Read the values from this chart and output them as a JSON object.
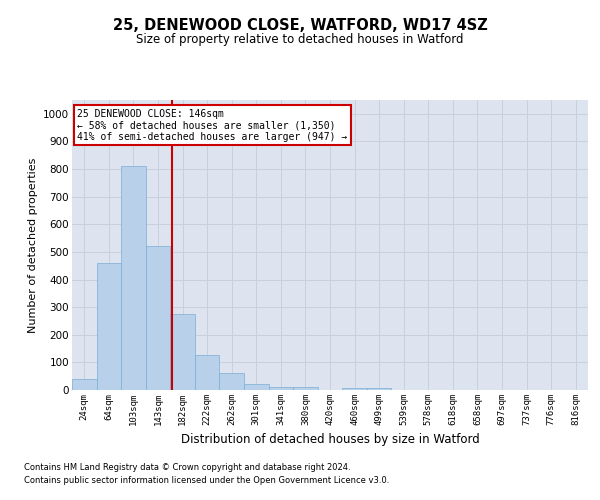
{
  "title": "25, DENEWOOD CLOSE, WATFORD, WD17 4SZ",
  "subtitle": "Size of property relative to detached houses in Watford",
  "xlabel": "Distribution of detached houses by size in Watford",
  "ylabel": "Number of detached properties",
  "footnote1": "Contains HM Land Registry data © Crown copyright and database right 2024.",
  "footnote2": "Contains public sector information licensed under the Open Government Licence v3.0.",
  "bin_labels": [
    "24sqm",
    "64sqm",
    "103sqm",
    "143sqm",
    "182sqm",
    "222sqm",
    "262sqm",
    "301sqm",
    "341sqm",
    "380sqm",
    "420sqm",
    "460sqm",
    "499sqm",
    "539sqm",
    "578sqm",
    "618sqm",
    "658sqm",
    "697sqm",
    "737sqm",
    "776sqm",
    "816sqm"
  ],
  "bar_values": [
    40,
    460,
    810,
    520,
    275,
    125,
    60,
    22,
    12,
    10,
    0,
    8,
    8,
    0,
    0,
    0,
    0,
    0,
    0,
    0,
    0
  ],
  "bar_color": "#b8d0ea",
  "bar_edgecolor": "#7aafd4",
  "vline_x": 3.58,
  "vline_color": "#cc0000",
  "ylim": [
    0,
    1050
  ],
  "yticks": [
    0,
    100,
    200,
    300,
    400,
    500,
    600,
    700,
    800,
    900,
    1000
  ],
  "annotation_text": "25 DENEWOOD CLOSE: 146sqm\n← 58% of detached houses are smaller (1,350)\n41% of semi-detached houses are larger (947) →",
  "annotation_box_color": "#cc0000",
  "grid_color": "#c8d0dc",
  "bg_color": "#dde4f0"
}
